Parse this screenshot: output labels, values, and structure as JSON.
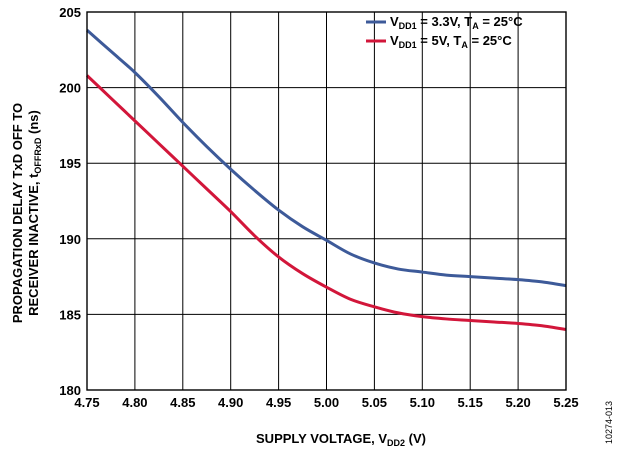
{
  "figure_id": "10274-013",
  "chart_data": {
    "type": "line",
    "xlabel": {
      "main": "SUPPLY VOLTAGE, V",
      "sub": "DD2",
      "tail": " (V)"
    },
    "ylabel_line1": "PROPAGATION DELAY TxD OFF TO",
    "ylabel_line2": {
      "main": "RECEIVER INACTIVE, t",
      "sub": "OFFRxD",
      "tail": " (ns)"
    },
    "xlim": [
      4.75,
      5.25
    ],
    "ylim": [
      180,
      205
    ],
    "x_ticks": [
      4.75,
      4.8,
      4.85,
      4.9,
      4.95,
      5.0,
      5.05,
      5.1,
      5.15,
      5.2,
      5.25
    ],
    "x_tick_labels": [
      "4.75",
      "4.80",
      "4.85",
      "4.90",
      "4.95",
      "5.00",
      "5.05",
      "5.10",
      "5.15",
      "5.20",
      "5.25"
    ],
    "y_ticks": [
      180,
      185,
      190,
      195,
      200,
      205
    ],
    "y_tick_labels": [
      "180",
      "185",
      "190",
      "195",
      "200",
      "205"
    ],
    "grid": true,
    "legend_position": "top-right",
    "series": [
      {
        "name": "VDD1 = 3.3V, TA = 25°C",
        "legend": {
          "a": "V",
          "a_sub": "DD1",
          "b": " = 3.3V, T",
          "b_sub": "A",
          "c": " = 25°C"
        },
        "color": "#3d5a99",
        "x": [
          4.75,
          4.775,
          4.8,
          4.825,
          4.85,
          4.875,
          4.9,
          4.925,
          4.95,
          4.975,
          5.0,
          5.025,
          5.05,
          5.075,
          5.1,
          5.125,
          5.15,
          5.175,
          5.2,
          5.225,
          5.25
        ],
        "y": [
          203.8,
          202.4,
          201.0,
          199.4,
          197.7,
          196.1,
          194.6,
          193.2,
          191.9,
          190.8,
          189.9,
          189.0,
          188.4,
          188.0,
          187.8,
          187.6,
          187.5,
          187.4,
          187.3,
          187.15,
          186.9
        ]
      },
      {
        "name": "VDD1 = 5V, TA = 25°C",
        "legend": {
          "a": "V",
          "a_sub": "DD1",
          "b": " = 5V, T",
          "b_sub": "A",
          "c": " = 25°C"
        },
        "color": "#d2163a",
        "x": [
          4.75,
          4.775,
          4.8,
          4.825,
          4.85,
          4.875,
          4.9,
          4.925,
          4.95,
          4.975,
          5.0,
          5.025,
          5.05,
          5.075,
          5.1,
          5.125,
          5.15,
          5.175,
          5.2,
          5.225,
          5.25
        ],
        "y": [
          200.8,
          199.3,
          197.8,
          196.3,
          194.8,
          193.3,
          191.8,
          190.2,
          188.8,
          187.7,
          186.8,
          186.0,
          185.5,
          185.1,
          184.85,
          184.7,
          184.6,
          184.5,
          184.4,
          184.25,
          184.0
        ]
      }
    ]
  }
}
